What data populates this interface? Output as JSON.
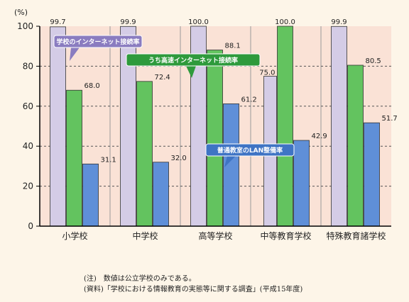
{
  "chart_data": {
    "type": "bar",
    "y_unit": "(%)",
    "ylim": [
      0,
      100
    ],
    "yticks": [
      0,
      20,
      40,
      60,
      80,
      100
    ],
    "grid": true,
    "categories": [
      "小学校",
      "中学校",
      "高等学校",
      "中等教育学校",
      "特殊教育諸学校"
    ],
    "series": [
      {
        "name": "学校のインターネット接続率",
        "values": [
          99.7,
          99.9,
          100.0,
          null,
          99.9
        ],
        "value_labels": [
          "99.7",
          "99.9",
          "100.0",
          "",
          "99.9"
        ],
        "color": "#d4cce6"
      },
      {
        "name": "うち高速インターネット接続率",
        "values": [
          68.0,
          72.4,
          88.1,
          100.0,
          80.5
        ],
        "value_labels": [
          "68.0",
          "72.4",
          "88.1",
          "100.0",
          "80.5"
        ],
        "color": "#63c35f"
      },
      {
        "name": "普通教室のLAN整備率",
        "values": [
          31.1,
          32.0,
          61.2,
          42.9,
          51.7
        ],
        "value_labels": [
          "31.1",
          "32.0",
          "61.2",
          "42.9",
          "51.7"
        ],
        "color": "#5f8fd8"
      }
    ],
    "extra_labels": [
      {
        "category_index": 3,
        "value": 75.0,
        "label": "75.0"
      }
    ],
    "legend_placement": "callouts-inside-plot"
  },
  "notes": [
    "(注)　数値は公立学校のみである。",
    "(資料)「学校における情報教育の実態等に関する調査」(平成15年度)"
  ],
  "colors": {
    "background": "#fdf5e8",
    "plot_background": "#fae2d6",
    "axis": "#000000",
    "grid": "#555555",
    "callout_purple": "#8a7cc0",
    "callout_green": "#2e9a3c",
    "callout_blue": "#3f74c4"
  }
}
